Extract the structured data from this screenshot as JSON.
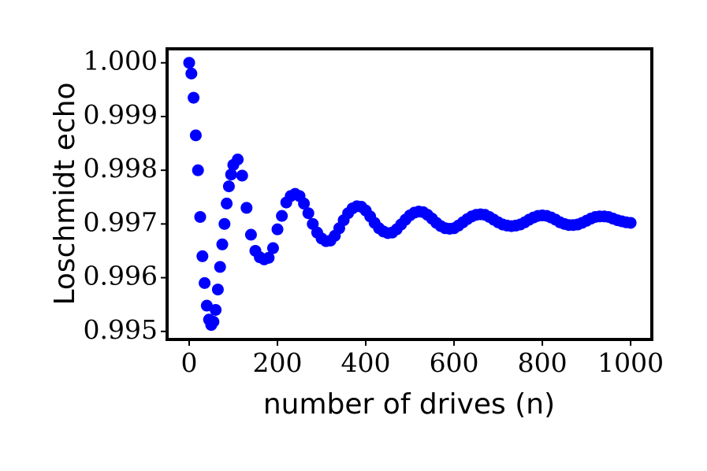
{
  "chart_data": {
    "type": "scatter",
    "xlabel": "number  of drives (n)",
    "ylabel": "Loschmidt echo",
    "color": "#0000ff",
    "x": [
      0,
      5,
      10,
      15,
      20,
      25,
      30,
      35,
      40,
      45,
      50,
      55,
      60,
      65,
      70,
      75,
      80,
      85,
      90,
      95,
      100,
      110,
      120,
      130,
      140,
      150,
      160,
      170,
      180,
      190,
      200,
      210,
      220,
      230,
      240,
      250,
      260,
      270,
      280,
      290,
      300,
      310,
      320,
      330,
      340,
      350,
      360,
      370,
      380,
      390,
      400,
      410,
      420,
      430,
      440,
      450,
      460,
      470,
      480,
      490,
      500,
      510,
      520,
      530,
      540,
      550,
      560,
      570,
      580,
      590,
      600,
      610,
      620,
      630,
      640,
      650,
      660,
      670,
      680,
      690,
      700,
      710,
      720,
      730,
      740,
      750,
      760,
      770,
      780,
      790,
      800,
      810,
      820,
      830,
      840,
      850,
      860,
      870,
      880,
      890,
      900,
      910,
      920,
      930,
      940,
      950,
      960,
      970,
      980,
      990,
      1000
    ],
    "values": [
      1.0,
      0.9998,
      0.99935,
      0.99865,
      0.998,
      0.99713,
      0.9964,
      0.9959,
      0.99548,
      0.99522,
      0.99512,
      0.99518,
      0.9954,
      0.99578,
      0.9962,
      0.99662,
      0.997,
      0.99738,
      0.9977,
      0.99792,
      0.9981,
      0.9982,
      0.9979,
      0.9973,
      0.9968,
      0.9965,
      0.99638,
      0.99634,
      0.99637,
      0.99655,
      0.9969,
      0.99715,
      0.9974,
      0.99752,
      0.99756,
      0.99752,
      0.99738,
      0.9972,
      0.997,
      0.99684,
      0.99673,
      0.99668,
      0.99669,
      0.99678,
      0.99692,
      0.99707,
      0.9972,
      0.99729,
      0.99733,
      0.99732,
      0.99725,
      0.99714,
      0.99702,
      0.99692,
      0.99686,
      0.99683,
      0.99684,
      0.9969,
      0.99699,
      0.99708,
      0.99716,
      0.99721,
      0.99723,
      0.99722,
      0.99717,
      0.9971,
      0.99702,
      0.99696,
      0.99692,
      0.99691,
      0.99692,
      0.99697,
      0.99703,
      0.99709,
      0.99714,
      0.99717,
      0.99718,
      0.99717,
      0.99713,
      0.99708,
      0.99703,
      0.99699,
      0.99697,
      0.99696,
      0.99697,
      0.99699,
      0.99703,
      0.99708,
      0.99712,
      0.99715,
      0.99716,
      0.99715,
      0.99712,
      0.99708,
      0.99703,
      0.997,
      0.99698,
      0.99698,
      0.99699,
      0.99702,
      0.99706,
      0.9971,
      0.99713,
      0.99714,
      0.99714,
      0.99713,
      0.9971,
      0.99707,
      0.99705,
      0.99703,
      0.99702
    ],
    "xlim": [
      -50,
      1048
    ],
    "ylim": [
      0.99485,
      1.00026
    ],
    "xticks": [
      0,
      200,
      400,
      600,
      800,
      1000
    ],
    "yticks": [
      0.995,
      0.996,
      0.997,
      0.998,
      0.999,
      {
        "value": 1,
        "label": "1.000"
      }
    ],
    "grid": false
  }
}
